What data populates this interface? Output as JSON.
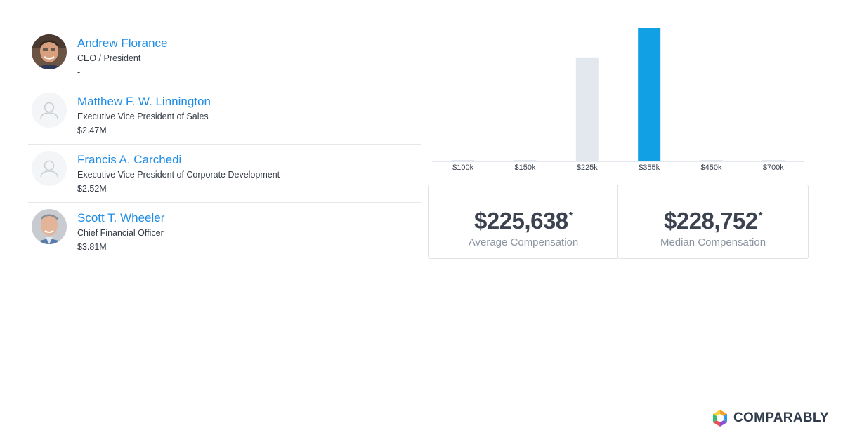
{
  "people": [
    {
      "name": "Andrew Florance",
      "title": "CEO / President",
      "compensation": "-",
      "avatar": "photo"
    },
    {
      "name": "Matthew F. W. Linnington",
      "title": "Executive Vice President of Sales",
      "compensation": "$2.47M",
      "avatar": "placeholder"
    },
    {
      "name": "Francis A. Carchedi",
      "title": "Executive Vice President of Corporate Development",
      "compensation": "$2.52M",
      "avatar": "placeholder"
    },
    {
      "name": "Scott T. Wheeler",
      "title": "Chief Financial Officer",
      "compensation": "$3.81M",
      "avatar": "photo"
    }
  ],
  "chart_data": {
    "type": "bar",
    "categories": [
      "$100k",
      "$150k",
      "$225k",
      "$355k",
      "$450k",
      "$700k"
    ],
    "values": [
      0,
      0,
      78,
      100,
      0,
      0
    ],
    "highlight_index": 3,
    "colors": {
      "default": "#e3e8ee",
      "highlight": "#12a0e5",
      "baseline": "#e3e8ee"
    },
    "grid": false,
    "title": "",
    "xlabel": "",
    "ylabel": ""
  },
  "stats": {
    "average": {
      "value": "$225,638",
      "mark": "*",
      "label": "Average Compensation"
    },
    "median": {
      "value": "$228,752",
      "mark": "*",
      "label": "Median Compensation"
    }
  },
  "brand": {
    "name": "COMPARABLY",
    "icon": "comparably-logo-icon"
  }
}
